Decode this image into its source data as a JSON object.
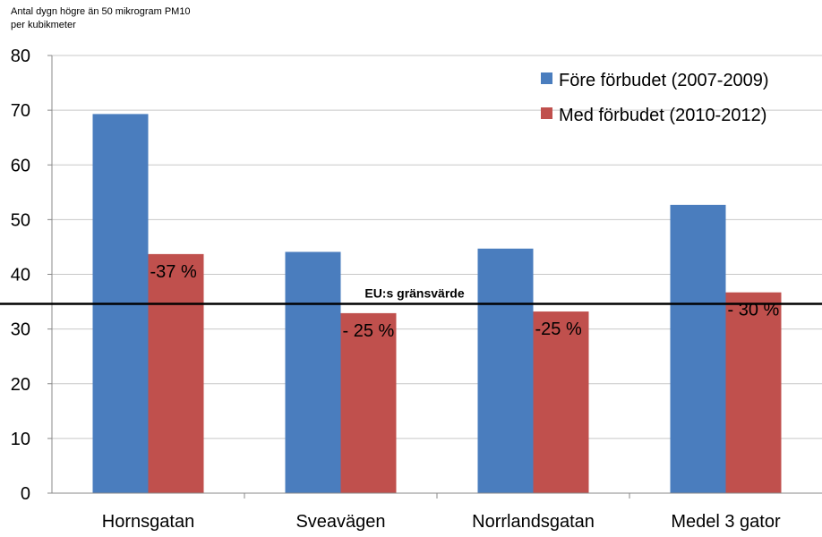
{
  "chart_data": {
    "type": "bar",
    "ylabel_line1": "Antal dygn högre än 50 mikrogram PM10",
    "ylabel_line2": "per kubikmeter",
    "ylim": [
      0,
      80
    ],
    "yticks": [
      0,
      10,
      20,
      30,
      40,
      50,
      60,
      70,
      80
    ],
    "grid": true,
    "legend_position": "top-right",
    "categories": [
      "Hornsgatan",
      "Sveavägen",
      "Norrlandsgatan",
      "Medel 3 gator"
    ],
    "series": [
      {
        "name": "Före förbudet (2007-2009)",
        "color": "#4a7dbe",
        "values": [
          69.3,
          44.1,
          44.7,
          52.7
        ]
      },
      {
        "name": "Med förbudet (2010-2012)",
        "color": "#c0504d",
        "values": [
          43.7,
          32.9,
          33.2,
          36.7
        ]
      }
    ],
    "bar_annotations": [
      "-37 %",
      "- 25 %",
      "-25 %",
      "- 30 %"
    ],
    "reference_line": {
      "value": 34.6,
      "label": "EU:s gränsvärde",
      "color": "#000000"
    }
  }
}
